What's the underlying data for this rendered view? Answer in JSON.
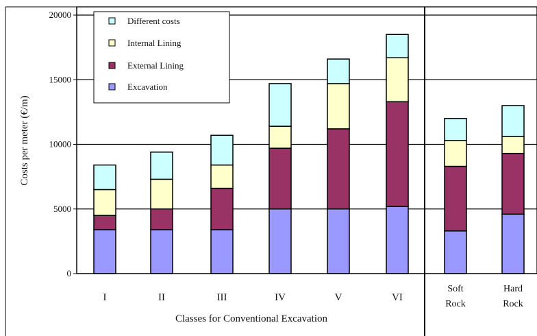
{
  "chart_data": {
    "type": "bar",
    "stacked": true,
    "xlabel": "Classes for Conventional Excavation",
    "ylabel": "Costs per meter (€/m)",
    "ylim": [
      0,
      20000
    ],
    "yticks": [
      0,
      5000,
      10000,
      15000,
      20000
    ],
    "grid": "horizontal",
    "legend_position": "top-left",
    "categories": [
      {
        "label": [
          "I"
        ]
      },
      {
        "label": [
          "II"
        ]
      },
      {
        "label": [
          "III"
        ]
      },
      {
        "label": [
          "IV"
        ]
      },
      {
        "label": [
          "V"
        ]
      },
      {
        "label": [
          "VI"
        ]
      },
      {
        "label": [
          "Soft",
          "Rock"
        ]
      },
      {
        "label": [
          "Hard",
          "Rock"
        ]
      }
    ],
    "series": [
      {
        "name": "Excavation",
        "color": "#9999ff",
        "values": [
          3400,
          3400,
          3400,
          5000,
          5000,
          5200,
          3300,
          4600
        ]
      },
      {
        "name": "External Lining",
        "color": "#993366",
        "values": [
          1100,
          1600,
          3200,
          4700,
          6200,
          8100,
          5000,
          4700
        ]
      },
      {
        "name": "Internal Lining",
        "color": "#ffffcc",
        "values": [
          2000,
          2300,
          1800,
          1700,
          3500,
          3400,
          2000,
          1300
        ]
      },
      {
        "name": "Different costs",
        "color": "#ccffff",
        "values": [
          1900,
          2100,
          2300,
          3300,
          1900,
          1800,
          1700,
          2400
        ]
      }
    ],
    "legend_order": [
      "Different costs",
      "Internal Lining",
      "External Lining",
      "Excavation"
    ]
  }
}
